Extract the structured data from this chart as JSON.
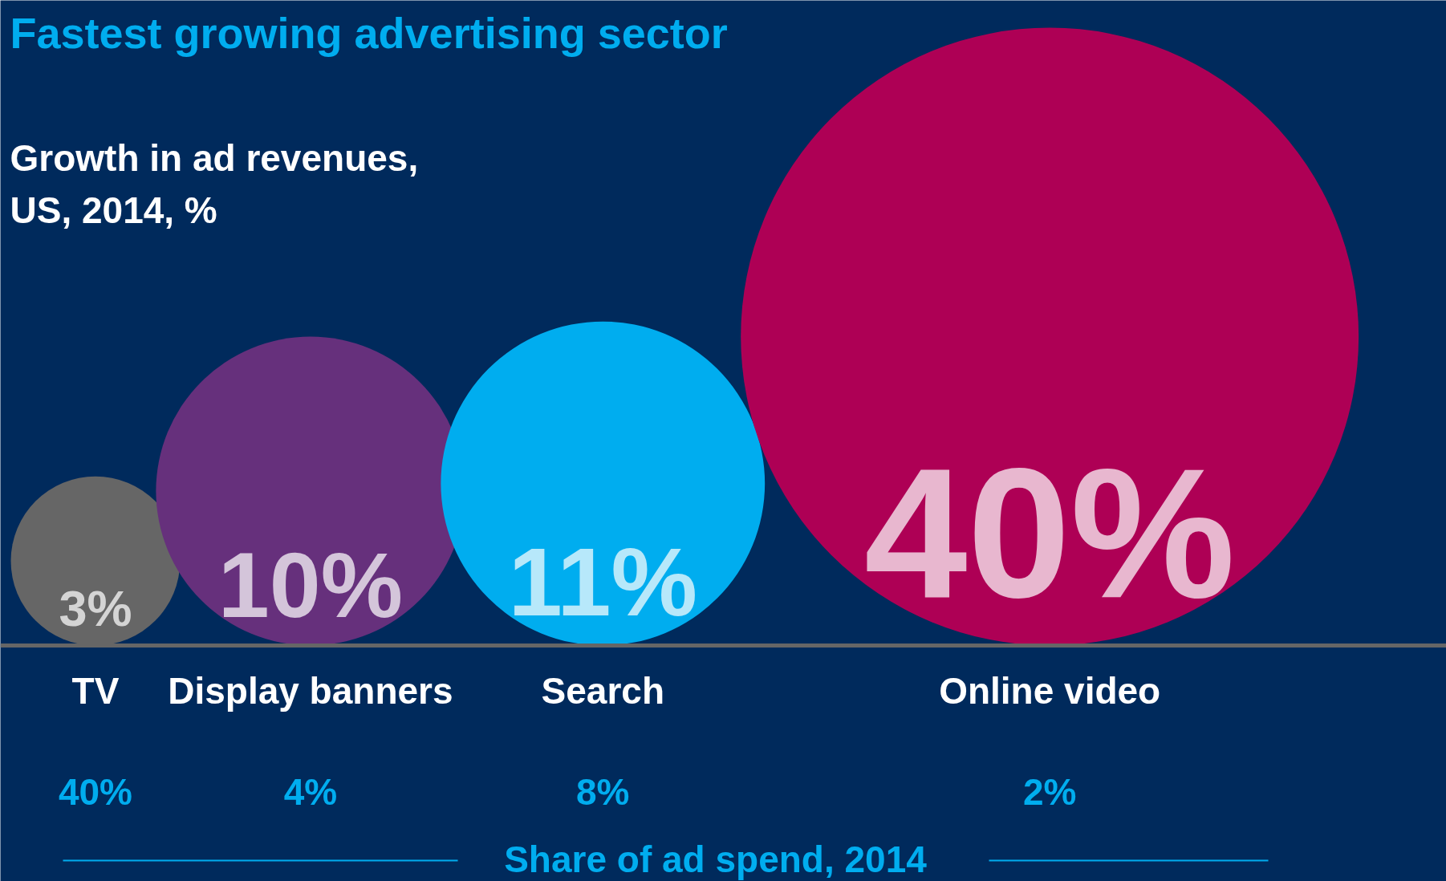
{
  "chart_data": {
    "type": "other",
    "title": "Fastest growing advertising sector",
    "subtitle": "Growth in ad revenues, US, 2014, %",
    "categories": [
      "TV",
      "Display banners",
      "Search",
      "Online video"
    ],
    "values": [
      3,
      10,
      11,
      40
    ],
    "value_labels": [
      "3%",
      "10%",
      "11%",
      "40%"
    ],
    "colors": [
      "#666666",
      "#66307c",
      "#00adef",
      "#ae0055"
    ],
    "annotations": [
      {
        "text": "40%",
        "x": "TV"
      },
      {
        "text": "4%",
        "x": "Display banners"
      },
      {
        "text": "8%",
        "x": "Search"
      },
      {
        "text": "2%",
        "x": "Online video"
      },
      "Share of ad spend, 2014"
    ]
  }
}
